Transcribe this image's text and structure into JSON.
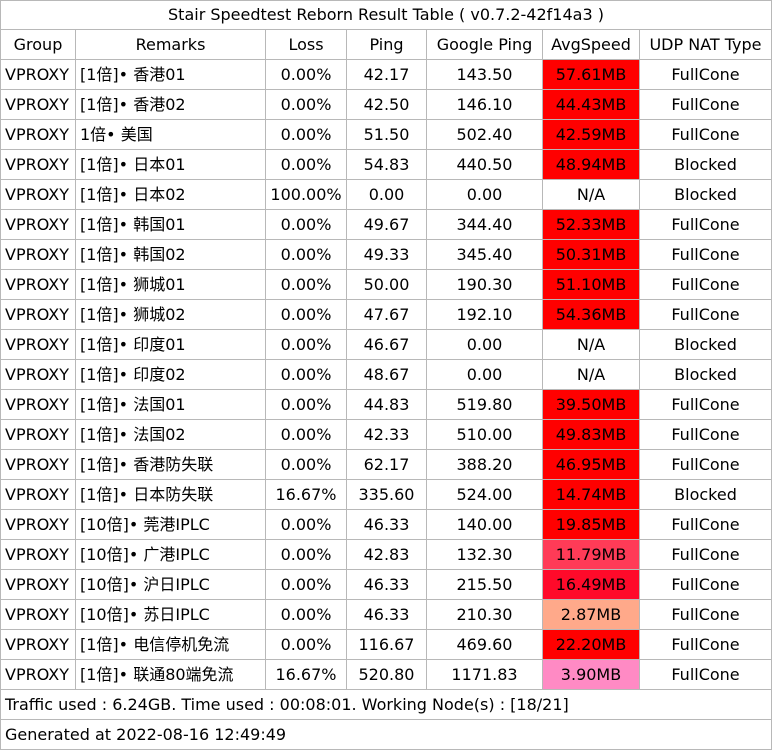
{
  "title": "Stair Speedtest Reborn Result Table ( v0.7.2-42f14a3 )",
  "headers": [
    "Group",
    "Remarks",
    "Loss",
    "Ping",
    "Google Ping",
    "AvgSpeed",
    "UDP NAT Type"
  ],
  "rows": [
    {
      "group": "VPROXY",
      "remarks": "[1倍]•   香港01",
      "loss": "0.00%",
      "ping": "42.17",
      "google_ping": "143.50",
      "speed": "57.61MB",
      "speed_color": "#ff0000",
      "nat": "FullCone"
    },
    {
      "group": "VPROXY",
      "remarks": "[1倍]•   香港02",
      "loss": "0.00%",
      "ping": "42.50",
      "google_ping": "146.10",
      "speed": "44.43MB",
      "speed_color": "#ff0000",
      "nat": "FullCone"
    },
    {
      "group": "VPROXY",
      "remarks": "1倍•   美国",
      "loss": "0.00%",
      "ping": "51.50",
      "google_ping": "502.40",
      "speed": "42.59MB",
      "speed_color": "#ff0000",
      "nat": "FullCone"
    },
    {
      "group": "VPROXY",
      "remarks": "[1倍]•   日本01",
      "loss": "0.00%",
      "ping": "54.83",
      "google_ping": "440.50",
      "speed": "48.94MB",
      "speed_color": "#ff0000",
      "nat": "Blocked"
    },
    {
      "group": "VPROXY",
      "remarks": "[1倍]•   日本02",
      "loss": "100.00%",
      "ping": "0.00",
      "google_ping": "0.00",
      "speed": "N/A",
      "speed_color": "#ffffff",
      "nat": "Blocked"
    },
    {
      "group": "VPROXY",
      "remarks": "[1倍]•   韩国01",
      "loss": "0.00%",
      "ping": "49.67",
      "google_ping": "344.40",
      "speed": "52.33MB",
      "speed_color": "#ff0000",
      "nat": "FullCone"
    },
    {
      "group": "VPROXY",
      "remarks": "[1倍]•   韩国02",
      "loss": "0.00%",
      "ping": "49.33",
      "google_ping": "345.40",
      "speed": "50.31MB",
      "speed_color": "#ff0000",
      "nat": "FullCone"
    },
    {
      "group": "VPROXY",
      "remarks": "[1倍]•   狮城01",
      "loss": "0.00%",
      "ping": "50.00",
      "google_ping": "190.30",
      "speed": "51.10MB",
      "speed_color": "#ff0000",
      "nat": "FullCone"
    },
    {
      "group": "VPROXY",
      "remarks": "[1倍]•   狮城02",
      "loss": "0.00%",
      "ping": "47.67",
      "google_ping": "192.10",
      "speed": "54.36MB",
      "speed_color": "#ff0000",
      "nat": "FullCone"
    },
    {
      "group": "VPROXY",
      "remarks": "[1倍]•   印度01",
      "loss": "0.00%",
      "ping": "46.67",
      "google_ping": "0.00",
      "speed": "N/A",
      "speed_color": "#ffffff",
      "nat": "Blocked"
    },
    {
      "group": "VPROXY",
      "remarks": "[1倍]•   印度02",
      "loss": "0.00%",
      "ping": "48.67",
      "google_ping": "0.00",
      "speed": "N/A",
      "speed_color": "#ffffff",
      "nat": "Blocked"
    },
    {
      "group": "VPROXY",
      "remarks": "[1倍]•   法国01",
      "loss": "0.00%",
      "ping": "44.83",
      "google_ping": "519.80",
      "speed": "39.50MB",
      "speed_color": "#ff0000",
      "nat": "FullCone"
    },
    {
      "group": "VPROXY",
      "remarks": "[1倍]•   法国02",
      "loss": "0.00%",
      "ping": "42.33",
      "google_ping": "510.00",
      "speed": "49.83MB",
      "speed_color": "#ff0000",
      "nat": "FullCone"
    },
    {
      "group": "VPROXY",
      "remarks": "[1倍]•   香港防失联",
      "loss": "0.00%",
      "ping": "62.17",
      "google_ping": "388.20",
      "speed": "46.95MB",
      "speed_color": "#ff0000",
      "nat": "FullCone"
    },
    {
      "group": "VPROXY",
      "remarks": "[1倍]•   日本防失联",
      "loss": "16.67%",
      "ping": "335.60",
      "google_ping": "524.00",
      "speed": "14.74MB",
      "speed_color": "#ff0000",
      "nat": "Blocked"
    },
    {
      "group": "VPROXY",
      "remarks": "[10倍]•   莞港IPLC",
      "loss": "0.00%",
      "ping": "46.33",
      "google_ping": "140.00",
      "speed": "19.85MB",
      "speed_color": "#ff0000",
      "nat": "FullCone"
    },
    {
      "group": "VPROXY",
      "remarks": "[10倍]•   广港IPLC",
      "loss": "0.00%",
      "ping": "42.83",
      "google_ping": "132.30",
      "speed": "11.79MB",
      "speed_color": "#ff3b57",
      "nat": "FullCone"
    },
    {
      "group": "VPROXY",
      "remarks": "[10倍]•   沪日IPLC",
      "loss": "0.00%",
      "ping": "46.33",
      "google_ping": "215.50",
      "speed": "16.49MB",
      "speed_color": "#ff0a2a",
      "nat": "FullCone"
    },
    {
      "group": "VPROXY",
      "remarks": "[10倍]•   苏日IPLC",
      "loss": "0.00%",
      "ping": "46.33",
      "google_ping": "210.30",
      "speed": "2.87MB",
      "speed_color": "#ffa98a",
      "nat": "FullCone"
    },
    {
      "group": "VPROXY",
      "remarks": "[1倍]•   电信停机免流",
      "loss": "0.00%",
      "ping": "116.67",
      "google_ping": "469.60",
      "speed": "22.20MB",
      "speed_color": "#ff0000",
      "nat": "FullCone"
    },
    {
      "group": "VPROXY",
      "remarks": "[1倍]•   联通80端免流",
      "loss": "16.67%",
      "ping": "520.80",
      "google_ping": "1171.83",
      "speed": "3.90MB",
      "speed_color": "#ff8ac4",
      "nat": "FullCone"
    }
  ],
  "traffic": "Traffic used : 6.24GB. Time used : 00:08:01. Working Node(s) : [18/21]",
  "generated": "Generated at 2022-08-16 12:49:49"
}
